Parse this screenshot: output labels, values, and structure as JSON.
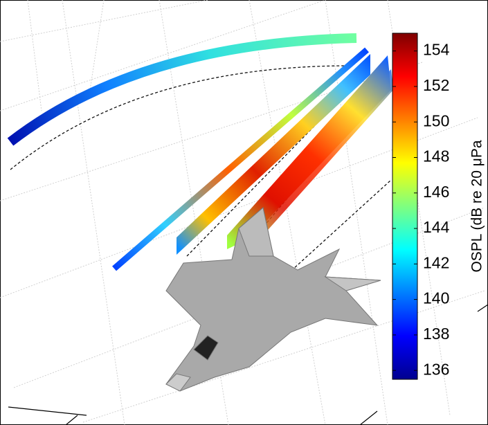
{
  "chart_data": {
    "type": "surface",
    "colorbar": {
      "label": "OSPL (dB re 20 μPa",
      "ylim": [
        135.5,
        155
      ],
      "yticks": [
        136,
        138,
        140,
        142,
        144,
        146,
        148,
        150,
        152,
        154
      ]
    }
  }
}
